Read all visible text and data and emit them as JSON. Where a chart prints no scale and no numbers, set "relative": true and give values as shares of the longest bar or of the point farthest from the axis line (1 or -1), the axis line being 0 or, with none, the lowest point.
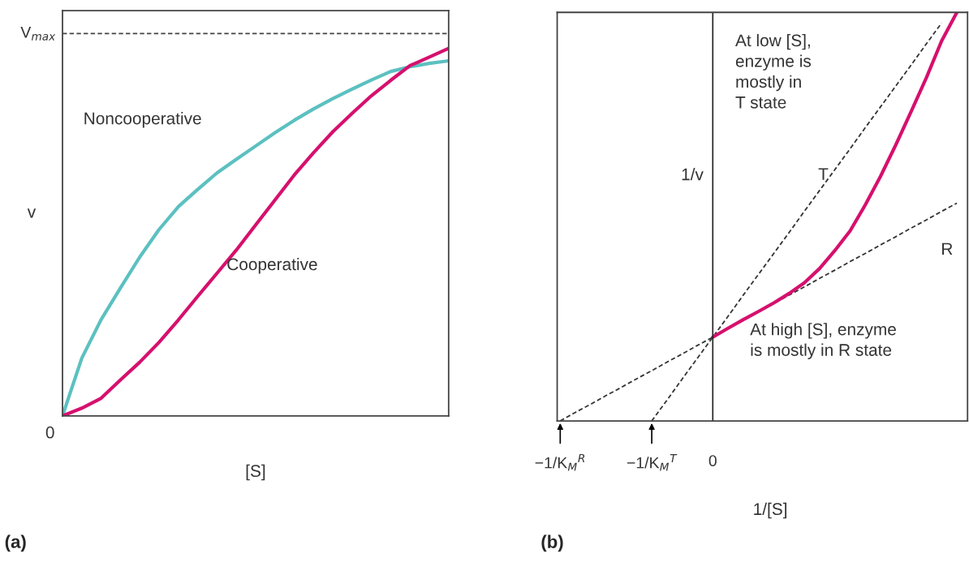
{
  "chart_data": [
    {
      "type": "line",
      "title": "(a)",
      "xlabel": "[S]",
      "ylabel": "v",
      "relative": true,
      "categories": [
        null,
        null,
        null,
        null,
        null,
        null,
        null,
        null,
        null,
        null,
        null,
        null,
        null,
        null,
        null,
        null,
        null,
        null,
        null,
        null,
        null
      ],
      "series": [
        {
          "color": "#5cc0c0",
          "values": [
            0,
            0.157,
            0.262,
            0.348,
            0.432,
            0.507,
            0.569,
            0.616,
            0.661,
            0.698,
            0.734,
            0.77,
            0.804,
            0.835,
            0.863,
            0.889,
            0.914,
            0.937,
            0.95,
            0.959,
            0.966
          ]
        },
        {
          "color": "#d6106e",
          "values": [
            0,
            0.021,
            0.048,
            0.098,
            0.146,
            0.2,
            0.261,
            0.325,
            0.388,
            0.451,
            0.519,
            0.587,
            0.655,
            0.716,
            0.773,
            0.823,
            0.871,
            0.913,
            0.953,
            0.976,
            1.0
          ]
        }
      ],
      "ref_lines": [
        {
          "axis": "y",
          "value": 1.04,
          "label": "V$_{max}$",
          "color": "#444444",
          "line_style": "dashed"
        }
      ],
      "annotations": [
        "Noncooperative",
        "Cooperative",
        "0"
      ]
    },
    {
      "type": "line",
      "title": "(b)",
      "xlabel": "1/[S]",
      "ylabel": "1/v",
      "relative": true,
      "categories": [
        "−1/K$_{M}$$^{R}$",
        null,
        null,
        null,
        null,
        null,
        "−1/K$_{M}$$^{T}$",
        null,
        null,
        null,
        "0",
        null,
        null,
        null,
        null,
        null,
        null,
        null,
        null,
        null,
        null,
        null,
        null,
        null,
        null,
        null,
        null
      ],
      "series": [
        {
          "color": "#333333",
          "line_style": "dashed",
          "values": [
            null,
            null,
            null,
            null,
            null,
            null,
            0,
            0.051,
            0.103,
            0.154,
            0.205,
            0.256,
            0.308,
            0.359,
            0.41,
            0.461,
            0.513,
            0.564,
            0.615,
            0.666,
            0.718,
            0.769,
            0.82,
            0.871,
            0.923,
            0.974,
            null
          ]
        },
        {
          "color": "#333333",
          "line_style": "dashed",
          "values": [
            0,
            0.021,
            0.041,
            0.062,
            0.082,
            0.103,
            0.123,
            0.144,
            0.164,
            0.185,
            0.205,
            0.226,
            0.246,
            0.267,
            0.287,
            0.308,
            0.328,
            0.349,
            0.369,
            0.39,
            0.41,
            0.431,
            0.451,
            0.472,
            0.492,
            0.513,
            0.533
          ]
        },
        {
          "color": "#d6106e",
          "values": [
            null,
            null,
            null,
            null,
            null,
            null,
            null,
            null,
            null,
            null,
            0.205,
            0.227,
            0.248,
            0.268,
            0.289,
            0.312,
            0.338,
            0.373,
            0.417,
            0.465,
            0.529,
            0.599,
            0.676,
            0.757,
            0.84,
            0.93,
            1.0
          ]
        }
      ],
      "ref_lines": [
        {
          "axis": "x",
          "value": "0",
          "color": "#222222",
          "line_style": "solid"
        }
      ],
      "annotations": [
        "At low [S],\nenzyme is\nmostly in\nT state",
        "T",
        "R",
        "At high [S], enzyme\nis mostly in R state"
      ]
    }
  ]
}
